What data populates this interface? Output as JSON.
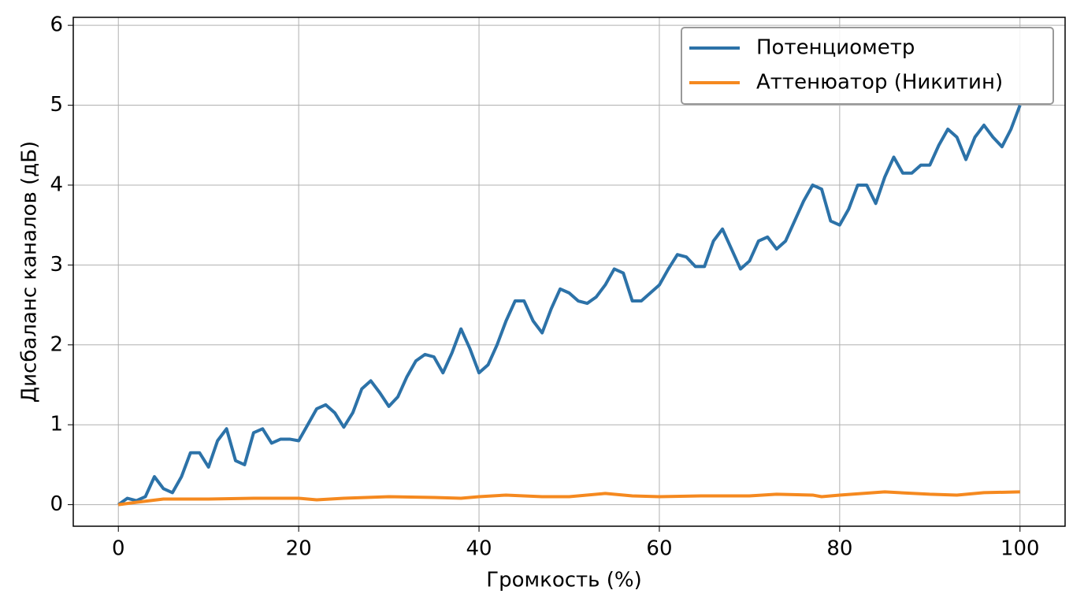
{
  "chart_data": {
    "type": "line",
    "xlabel": "Громкость (%)",
    "ylabel": "Дисбаланс каналов (дБ)",
    "xlim": [
      -5,
      105
    ],
    "xticks": [
      0,
      20,
      40,
      60,
      80,
      100
    ],
    "ylim": [
      -0.27,
      6.1
    ],
    "yticks": [
      0,
      1,
      2,
      3,
      4,
      5,
      6
    ],
    "grid": true,
    "legend": "upper right",
    "series": [
      {
        "name": "Потенциометр",
        "color": "#2c72a8",
        "x": [
          0,
          1,
          2,
          3,
          4,
          5,
          6,
          7,
          8,
          9,
          10,
          11,
          12,
          13,
          14,
          15,
          16,
          17,
          18,
          19,
          20,
          21,
          22,
          23,
          24,
          25,
          26,
          27,
          28,
          29,
          30,
          31,
          32,
          33,
          34,
          35,
          36,
          37,
          38,
          39,
          40,
          41,
          42,
          43,
          44,
          45,
          46,
          47,
          48,
          49,
          50,
          51,
          52,
          53,
          54,
          55,
          56,
          57,
          58,
          59,
          60,
          61,
          62,
          63,
          64,
          65,
          66,
          67,
          68,
          69,
          70,
          71,
          72,
          73,
          74,
          75,
          76,
          77,
          78,
          79,
          80,
          81,
          82,
          83,
          84,
          85,
          86,
          87,
          88,
          89,
          90,
          91,
          92,
          93,
          94,
          95,
          96,
          97,
          98,
          99,
          100
        ],
        "values": [
          0,
          0.08,
          0.05,
          0.1,
          0.35,
          0.2,
          0.15,
          0.35,
          0.65,
          0.65,
          0.47,
          0.8,
          0.95,
          0.55,
          0.5,
          0.9,
          0.95,
          0.77,
          0.82,
          0.82,
          0.8,
          1.0,
          1.2,
          1.25,
          1.15,
          0.97,
          1.15,
          1.45,
          1.55,
          1.4,
          1.23,
          1.35,
          1.6,
          1.8,
          1.88,
          1.85,
          1.65,
          1.9,
          2.2,
          1.95,
          1.65,
          1.75,
          2.0,
          2.3,
          2.55,
          2.55,
          2.3,
          2.15,
          2.45,
          2.7,
          2.65,
          2.55,
          2.52,
          2.6,
          2.75,
          2.95,
          2.9,
          2.55,
          2.55,
          2.65,
          2.75,
          2.95,
          3.13,
          3.1,
          2.98,
          2.98,
          3.3,
          3.45,
          3.2,
          2.95,
          3.05,
          3.3,
          3.35,
          3.2,
          3.3,
          3.55,
          3.8,
          4.0,
          3.95,
          3.55,
          3.5,
          3.7,
          4.0,
          4.0,
          3.77,
          4.1,
          4.35,
          4.15,
          4.15,
          4.25,
          4.25,
          4.5,
          4.7,
          4.6,
          4.32,
          4.6,
          4.75,
          4.6,
          4.48,
          4.7,
          5.0
        ]
      },
      {
        "name": "Аттенюатор (Никитин)",
        "color": "#f5891f",
        "x": [
          0,
          2,
          5,
          10,
          15,
          20,
          22,
          25,
          30,
          35,
          38,
          40,
          43,
          47,
          50,
          54,
          57,
          60,
          65,
          70,
          73,
          77,
          78,
          80,
          85,
          90,
          93,
          96,
          100
        ],
        "values": [
          0,
          0.03,
          0.07,
          0.07,
          0.08,
          0.08,
          0.06,
          0.08,
          0.1,
          0.09,
          0.08,
          0.1,
          0.12,
          0.1,
          0.1,
          0.14,
          0.11,
          0.1,
          0.11,
          0.11,
          0.13,
          0.12,
          0.1,
          0.12,
          0.16,
          0.13,
          0.12,
          0.15,
          0.16
        ]
      }
    ]
  }
}
